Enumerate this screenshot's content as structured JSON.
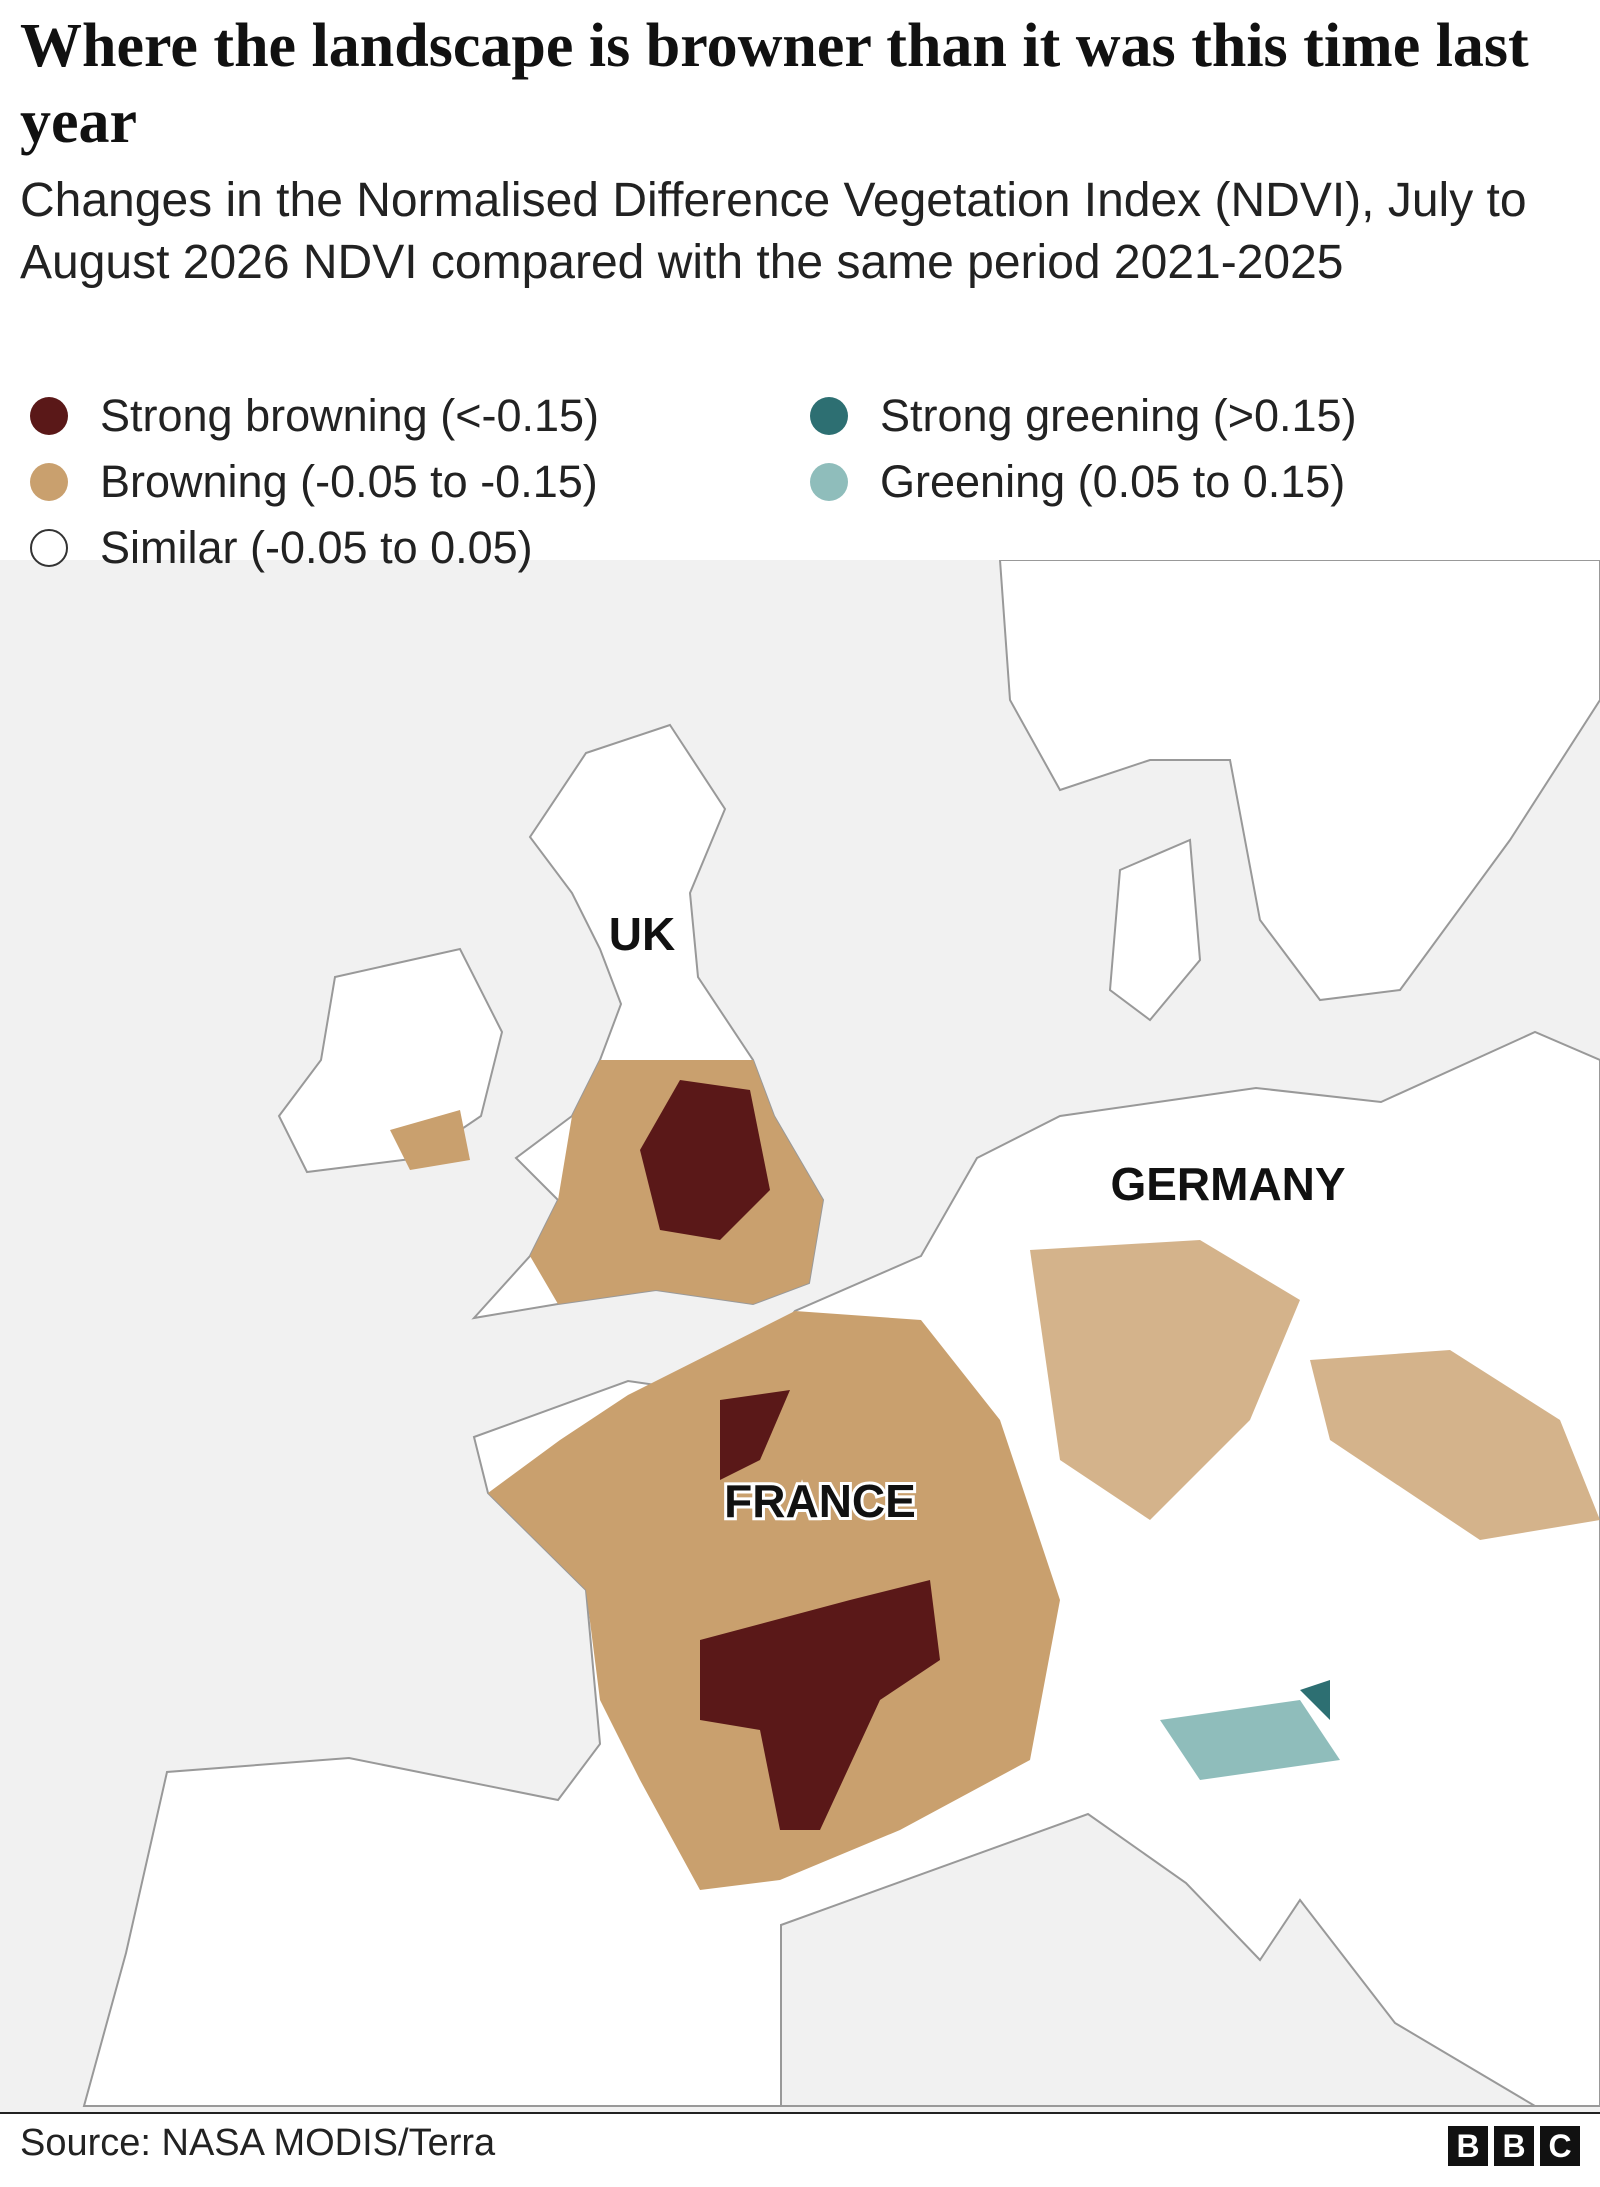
{
  "header": {
    "title": "Where the landscape is browner than it was this time last year",
    "subtitle": "Changes in the Normalised Difference Vegetation Index (NDVI), July to August 2026 NDVI compared with the same period 2021-2025"
  },
  "legend": [
    {
      "label": "Strong browning (<-0.15)",
      "color": "#5a1818"
    },
    {
      "label": "Strong greening (>0.15)",
      "color": "#2d6f72"
    },
    {
      "label": "Browning (-0.05 to -0.15)",
      "color": "#c9a06e"
    },
    {
      "label": "Greening (0.05 to 0.15)",
      "color": "#8fbdbb"
    },
    {
      "label": "Similar (-0.05 to 0.05)",
      "color": "#ffffff"
    }
  ],
  "map": {
    "labels": [
      "UK",
      "GERMANY",
      "FRANCE"
    ]
  },
  "footer": {
    "source": "Source: NASA MODIS/Terra",
    "logo": [
      "B",
      "B",
      "C"
    ]
  }
}
